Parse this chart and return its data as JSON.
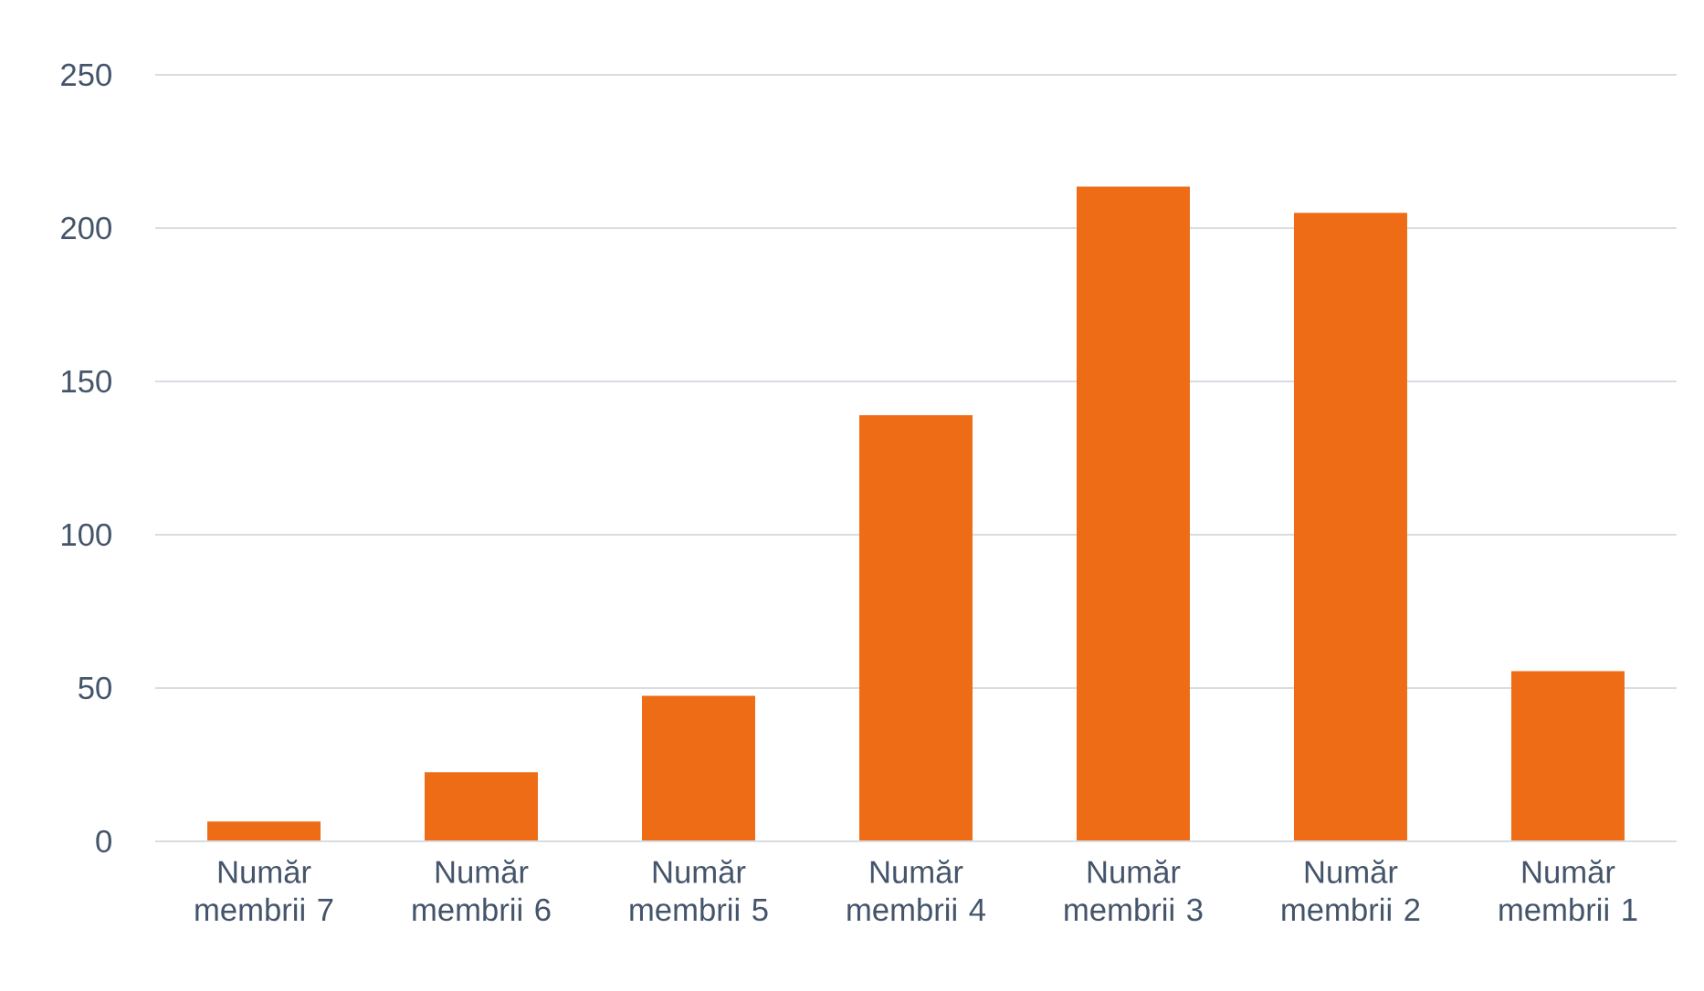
{
  "chart_data": {
    "type": "bar",
    "categories": [
      "Număr membrii 7",
      "Număr membrii 6",
      "Număr membrii 5",
      "Număr membrii 4",
      "Număr membrii 3",
      "Număr membrii 2",
      "Număr membrii 1"
    ],
    "values": [
      6.5,
      22.5,
      47.5,
      139,
      213.5,
      205,
      55.5
    ],
    "color": "#ef6c16",
    "ylim": [
      0,
      250
    ],
    "yticks": [
      0,
      50,
      100,
      150,
      200,
      250
    ],
    "grid": "y"
  }
}
